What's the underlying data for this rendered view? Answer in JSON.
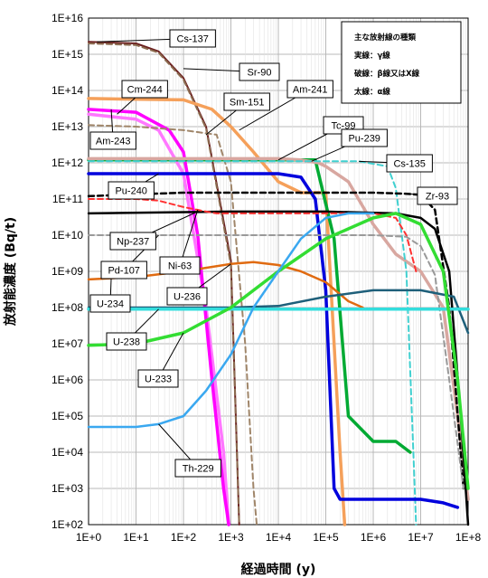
{
  "chart_data": {
    "type": "line",
    "xlabel": "経過時間 (y)",
    "ylabel": "放射能濃度 (Bq/t)",
    "x_scale": "log",
    "y_scale": "log",
    "xlim": [
      1,
      100000000
    ],
    "ylim": [
      100,
      10000000000000000
    ],
    "x_ticks": [
      "1E+0",
      "1E+1",
      "1E+2",
      "1E+3",
      "1E+4",
      "1E+5",
      "1E+6",
      "1E+7",
      "1E+8"
    ],
    "y_ticks": [
      "1E+02",
      "1E+03",
      "1E+04",
      "1E+05",
      "1E+06",
      "1E+07",
      "1E+08",
      "1E+09",
      "1E+10",
      "1E+11",
      "1E+12",
      "1E+13",
      "1E+14",
      "1E+15",
      "1E+16"
    ],
    "grid": true,
    "legend": {
      "position": "top-right",
      "title": "主な放射線の種類",
      "entries": [
        "実線：γ線",
        "破線：β線又はX線",
        "太線：α線"
      ]
    },
    "series": [
      {
        "name": "Cs-137",
        "color": "#6b1f1f",
        "style": "solid",
        "width": 2,
        "x": [
          1,
          10,
          30,
          100,
          300,
          1000,
          1500
        ],
        "y": [
          2200000000000000.0,
          2000000000000000.0,
          1200000000000000.0,
          220000000000000.0,
          10000000000000.0,
          2000000000.0,
          100
        ]
      },
      {
        "name": "Sr-90",
        "color": "#8b6b4f",
        "style": "dashed",
        "width": 2,
        "x": [
          1,
          10,
          30,
          100,
          300,
          1000,
          1500
        ],
        "y": [
          2000000000000000.0,
          1800000000000000.0,
          1100000000000000.0,
          200000000000000.0,
          9000000000000.0,
          1500000000.0,
          100
        ]
      },
      {
        "name": "Cm-244",
        "color": "#ff77ff",
        "style": "solid",
        "width": 3.5,
        "x": [
          1,
          10,
          30,
          100,
          300,
          700,
          900
        ],
        "y": [
          22000000000000.0,
          16000000000000.0,
          8000000000000.0,
          500000000000.0,
          100000000.0,
          10000.0,
          100
        ]
      },
      {
        "name": "Am-243",
        "color": "#ff00ff",
        "style": "solid",
        "width": 3.5,
        "x": [
          1,
          10,
          50,
          100,
          200,
          400,
          700,
          900
        ],
        "y": [
          30000000000000.0,
          25000000000000.0,
          8000000000000.0,
          2000000000000.0,
          10000000000.0,
          1000000.0,
          1000.0,
          100
        ]
      },
      {
        "name": "Sm-151",
        "color": "#a0866a",
        "style": "dashed",
        "width": 2,
        "x": [
          1,
          10,
          100,
          500,
          1000,
          2000,
          3000,
          3500
        ],
        "y": [
          11000000000000.0,
          10000000000000.0,
          8000000000000.0,
          6000000000000.0,
          300000000000.0,
          10000000.0,
          1000.0,
          100
        ]
      },
      {
        "name": "Am-241",
        "color": "#f5a05a",
        "style": "solid",
        "width": 3.5,
        "x": [
          1,
          100,
          400,
          1000,
          3000,
          10000,
          30000,
          100000,
          200000,
          250000
        ],
        "y": [
          60000000000000.0,
          55000000000000.0,
          30000000000000.0,
          10000000000000.0,
          2000000000000.0,
          300000000000.0,
          150000000000.0,
          150000000000.0,
          10000.0,
          100
        ]
      },
      {
        "name": "Tc-99",
        "color": "#00aa33",
        "style": "solid",
        "width": 3.5,
        "x": [
          1,
          1000,
          10000,
          60000,
          150000,
          300000,
          1000000,
          3000000,
          6000000
        ],
        "y": [
          1200000000000.0,
          1200000000000.0,
          1200000000000.0,
          1200000000000.0,
          8000000000.0,
          100000.0,
          20000.0,
          20000.0,
          10000.0
        ]
      },
      {
        "name": "Pu-239",
        "color": "#d8a7a0",
        "style": "solid",
        "width": 3.5,
        "x": [
          1,
          10000,
          30000,
          70000,
          100000,
          300000,
          1000000,
          3000000,
          10000000,
          30000000,
          60000000,
          100000000
        ],
        "y": [
          1300000000000.0,
          1300000000000.0,
          1200000000000.0,
          1000000000000.0,
          800000000000.0,
          300000000000.0,
          20000000000.0,
          3000000000.0,
          1000000000.0,
          100000000.0,
          100000.0,
          500
        ]
      },
      {
        "name": "Cs-135",
        "color": "#40d0d0",
        "style": "dashed",
        "width": 2,
        "x": [
          1,
          100000,
          500000,
          2000000,
          3000000,
          5000000,
          7000000,
          8000000
        ],
        "y": [
          1100000000000.0,
          1100000000000.0,
          1100000000000.0,
          800000000000.0,
          200000000000.0,
          1000000000.0,
          10000.0,
          100
        ]
      },
      {
        "name": "Pu-240",
        "color": "#0000dd",
        "style": "solid",
        "width": 3.5,
        "x": [
          1,
          1000,
          10000,
          30000,
          60000,
          100000,
          150000,
          200000,
          300000,
          1000000,
          10000000,
          30000000,
          60000000
        ],
        "y": [
          500000000000.0,
          500000000000.0,
          500000000000.0,
          400000000000.0,
          100000000000.0,
          300000000.0,
          1000.0,
          500,
          500,
          500,
          500,
          400,
          300
        ]
      },
      {
        "name": "Zr-93",
        "color": "#000000",
        "style": "dashed",
        "width": 2.5,
        "x": [
          1,
          100,
          1000000,
          5000000,
          10000000,
          20000000,
          40000000,
          80000000
        ],
        "y": [
          120000000000.0,
          150000000000.0,
          150000000000.0,
          140000000000.0,
          130000000000.0,
          50000000000.0,
          100000000.0,
          1000.0
        ]
      },
      {
        "name": "Np-237",
        "color": "#000000",
        "style": "solid",
        "width": 2.5,
        "x": [
          1,
          1000,
          100000,
          3000000,
          10000000,
          20000000,
          40000000,
          70000000,
          100000000
        ],
        "y": [
          40000000000.0,
          45000000000.0,
          45000000000.0,
          40000000000.0,
          30000000000.0,
          15000000000.0,
          1000000000.0,
          100000.0,
          100
        ]
      },
      {
        "name": "Ni-63",
        "color": "#ff3030",
        "style": "dashed",
        "width": 2,
        "x": [
          1,
          10,
          30,
          100,
          200,
          300,
          500,
          1000,
          10000,
          100000,
          1000000,
          3000000,
          5000000,
          8000000
        ],
        "y": [
          100000000000.0,
          100000000000.0,
          90000000000.0,
          60000000000.0,
          50000000000.0,
          45000000000.0,
          40000000000.0,
          40000000000.0,
          40000000000.0,
          40000000000.0,
          40000000000.0,
          30000000000.0,
          10000000000.0,
          1000000000.0
        ]
      },
      {
        "name": "Pd-107",
        "color": "#999999",
        "style": "dashed",
        "width": 2,
        "x": [
          1,
          1000,
          100000,
          1000000,
          5000000,
          10000000,
          20000000,
          40000000,
          80000000
        ],
        "y": [
          10000000000.0,
          10000000000.0,
          10000000000.0,
          10000000000.0,
          9000000000.0,
          5000000000.0,
          800000000.0,
          1000000.0,
          1000.0
        ]
      },
      {
        "name": "U-234",
        "color": "#e06a10",
        "style": "solid",
        "width": 2.5,
        "x": [
          1,
          10,
          100,
          1000,
          3000,
          10000,
          30000,
          100000,
          300000,
          600000
        ],
        "y": [
          600000000.0,
          700000000.0,
          1000000000.0,
          1600000000.0,
          1800000000.0,
          1500000000.0,
          1000000000.0,
          500000000.0,
          150000000.0,
          100000000.0
        ]
      },
      {
        "name": "U-236",
        "color": "#1e5f7a",
        "style": "solid",
        "width": 2.5,
        "x": [
          1,
          1000,
          10000,
          100000,
          1000000,
          10000000,
          50000000,
          100000000
        ],
        "y": [
          100000000.0,
          100000000.0,
          110000000.0,
          200000000.0,
          300000000.0,
          300000000.0,
          200000000.0,
          20000000.0
        ]
      },
      {
        "name": "U-238",
        "color": "#33dddd",
        "style": "solid",
        "width": 3.5,
        "x": [
          1,
          100000000
        ],
        "y": [
          90000000.0,
          90000000.0
        ]
      },
      {
        "name": "U-233",
        "color": "#33dd33",
        "style": "solid",
        "width": 3.5,
        "x": [
          1,
          10,
          100,
          1000,
          10000,
          100000,
          1000000,
          3000000,
          10000000,
          30000000,
          60000000,
          100000000
        ],
        "y": [
          9000000.0,
          10000000.0,
          20000000.0,
          100000000.0,
          1000000000.0,
          8000000000.0,
          30000000000.0,
          40000000000.0,
          20000000000.0,
          1000000000.0,
          1000000.0,
          1000.0
        ]
      },
      {
        "name": "Th-229",
        "color": "#3aa8f0",
        "style": "solid",
        "width": 2.5,
        "x": [
          1,
          10,
          30,
          100,
          300,
          1000,
          3000,
          10000,
          30000,
          100000,
          300000,
          1000000
        ],
        "y": [
          50000.0,
          50000.0,
          60000.0,
          100000.0,
          500000.0,
          5000000.0,
          100000000.0,
          1000000000.0,
          8000000000.0,
          30000000000.0,
          40000000000.0,
          40000000000.0
        ]
      }
    ],
    "annotations": [
      {
        "text": "Cs-137",
        "series": "Cs-137"
      },
      {
        "text": "Sr-90",
        "series": "Sr-90"
      },
      {
        "text": "Cm-244",
        "series": "Cm-244"
      },
      {
        "text": "Sm-151",
        "series": "Sm-151"
      },
      {
        "text": "Am-241",
        "series": "Am-241"
      },
      {
        "text": "Am-243",
        "series": "Am-243"
      },
      {
        "text": "Tc-99",
        "series": "Tc-99"
      },
      {
        "text": "Pu-239",
        "series": "Pu-239"
      },
      {
        "text": "Cs-135",
        "series": "Cs-135"
      },
      {
        "text": "Pu-240",
        "series": "Pu-240"
      },
      {
        "text": "Zr-93",
        "series": "Zr-93"
      },
      {
        "text": "Np-237",
        "series": "Np-237"
      },
      {
        "text": "Ni-63",
        "series": "Ni-63"
      },
      {
        "text": "Pd-107",
        "series": "Pd-107"
      },
      {
        "text": "U-234",
        "series": "U-234"
      },
      {
        "text": "U-236",
        "series": "U-236"
      },
      {
        "text": "U-238",
        "series": "U-238"
      },
      {
        "text": "U-233",
        "series": "U-233"
      },
      {
        "text": "Th-229",
        "series": "Th-229"
      }
    ]
  }
}
